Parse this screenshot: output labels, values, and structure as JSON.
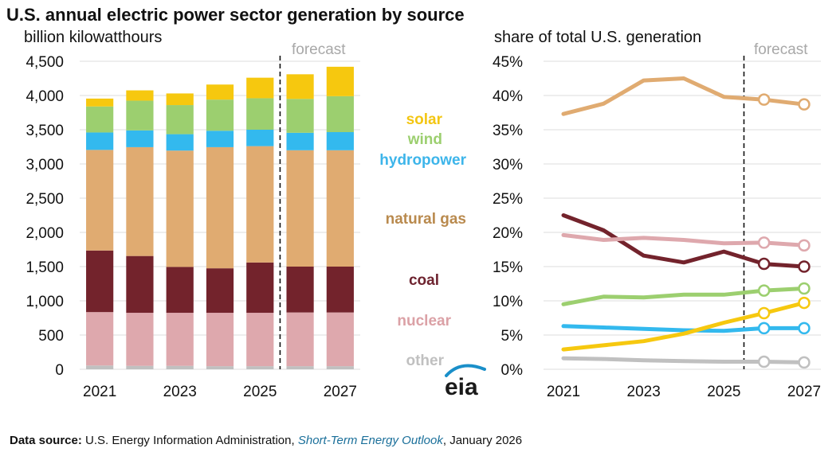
{
  "title": "U.S. annual electric power sector generation by source",
  "footer": {
    "label": "Data source:",
    "text": "U.S. Energy Information Administration,",
    "publication": "Short-Term Energy Outlook",
    "date": ", January 2026"
  },
  "logo_text": "eia",
  "legend": [
    {
      "label": "solar",
      "color": "#f3c613"
    },
    {
      "label": "wind",
      "color": "#9ccf6f"
    },
    {
      "label": "hydropower",
      "color": "#3db5ea"
    },
    {
      "label": "natural gas",
      "color": "#b98a4e"
    },
    {
      "label": "coal",
      "color": "#6e2430"
    },
    {
      "label": "nuclear",
      "color": "#dba1a6"
    },
    {
      "label": "other",
      "color": "#c0c0c0"
    }
  ],
  "chart_data": [
    {
      "type": "bar",
      "stacked": true,
      "subtitle": "billion kilowatthours",
      "forecast_label": "forecast",
      "categories": [
        "2021",
        "2022",
        "2023",
        "2024",
        "2025",
        "2026",
        "2027"
      ],
      "x_tick_labels": [
        "2021",
        "2023",
        "2025",
        "2027"
      ],
      "forecast_start_after": "2025",
      "ylim": [
        0,
        4500
      ],
      "y_ticks": [
        0,
        500,
        1000,
        1500,
        2000,
        2500,
        3000,
        3500,
        4000,
        4500
      ],
      "y_tick_labels": [
        "0",
        "500",
        "1,000",
        "1,500",
        "2,000",
        "2,500",
        "3,000",
        "3,500",
        "4,000",
        "4,500"
      ],
      "grid": true,
      "series": [
        {
          "name": "other",
          "color": "#c0c0c0",
          "values": [
            55,
            50,
            50,
            45,
            45,
            45,
            45
          ]
        },
        {
          "name": "nuclear",
          "color": "#dea8ad",
          "values": [
            780,
            775,
            775,
            780,
            780,
            785,
            785
          ]
        },
        {
          "name": "coal",
          "color": "#73232c",
          "values": [
            900,
            830,
            670,
            650,
            735,
            670,
            670
          ]
        },
        {
          "name": "natural gas",
          "color": "#e0ab71",
          "values": [
            1470,
            1590,
            1700,
            1770,
            1700,
            1700,
            1700
          ]
        },
        {
          "name": "hydropower",
          "color": "#33b9ee",
          "values": [
            255,
            245,
            240,
            240,
            240,
            255,
            265
          ]
        },
        {
          "name": "wind",
          "color": "#9ccf6f",
          "values": [
            380,
            435,
            425,
            455,
            460,
            495,
            525
          ]
        },
        {
          "name": "solar",
          "color": "#f6c80f",
          "values": [
            115,
            150,
            170,
            220,
            300,
            360,
            430
          ]
        }
      ]
    },
    {
      "type": "line",
      "subtitle": "share of total U.S. generation",
      "forecast_label": "forecast",
      "x": [
        2021,
        2022,
        2023,
        2024,
        2025,
        2026,
        2027
      ],
      "x_tick_labels": [
        "2021",
        "2023",
        "2025",
        "2027"
      ],
      "forecast_start_after": "2025",
      "forecast_points_from": 2026,
      "ylim": [
        0,
        45
      ],
      "y_ticks": [
        0,
        5,
        10,
        15,
        20,
        25,
        30,
        35,
        40,
        45
      ],
      "y_tick_labels": [
        "0%",
        "5%",
        "10%",
        "15%",
        "20%",
        "25%",
        "30%",
        "35%",
        "40%",
        "45%"
      ],
      "grid": true,
      "series": [
        {
          "name": "natural gas",
          "color": "#e0ab71",
          "values": [
            37.3,
            38.8,
            42.2,
            42.5,
            39.8,
            39.4,
            38.7
          ]
        },
        {
          "name": "coal",
          "color": "#73232c",
          "values": [
            22.5,
            20.3,
            16.6,
            15.6,
            17.2,
            15.4,
            15.0
          ]
        },
        {
          "name": "nuclear",
          "color": "#dea8ad",
          "values": [
            19.6,
            18.9,
            19.2,
            18.9,
            18.4,
            18.5,
            18.1
          ]
        },
        {
          "name": "wind",
          "color": "#9ccf6f",
          "values": [
            9.5,
            10.6,
            10.5,
            10.9,
            10.9,
            11.5,
            11.8
          ]
        },
        {
          "name": "hydropower",
          "color": "#33b9ee",
          "values": [
            6.3,
            6.1,
            5.9,
            5.7,
            5.6,
            6.0,
            6.0
          ]
        },
        {
          "name": "solar",
          "color": "#f6c80f",
          "values": [
            2.9,
            3.5,
            4.1,
            5.2,
            6.8,
            8.2,
            9.7
          ]
        },
        {
          "name": "other",
          "color": "#c0c0c0",
          "values": [
            1.6,
            1.5,
            1.3,
            1.2,
            1.1,
            1.1,
            1.0
          ]
        }
      ]
    }
  ]
}
